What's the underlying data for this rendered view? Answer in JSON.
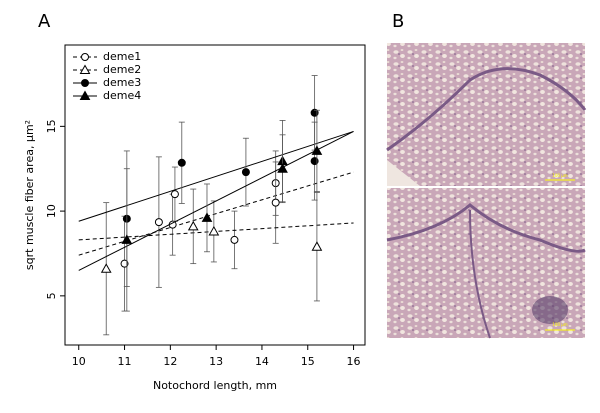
{
  "panel_labels": [
    "A",
    "B"
  ],
  "chart_data": {
    "type": "scatter",
    "xlabel": "Notochord length, mm",
    "ylabel": "sqrt muscle fiber area, µm²",
    "xlim": [
      9.7,
      16.25
    ],
    "ylim": [
      2.1,
      19.8
    ],
    "xticks": [
      10,
      11,
      12,
      13,
      14,
      15,
      16
    ],
    "yticks": [
      5,
      10,
      15
    ],
    "legend": "top-left",
    "fit_x": [
      10,
      16
    ],
    "series": [
      {
        "name": "deme1",
        "color": "#000000",
        "marker": "circle",
        "filled": false,
        "dashed": true,
        "x": [
          11.0,
          11.75,
          12.05,
          12.1,
          13.4,
          14.3,
          14.3
        ],
        "values": [
          6.9,
          9.35,
          9.2,
          11.0,
          8.3,
          11.65,
          10.5
        ],
        "err": [
          2.8,
          3.85,
          1.8,
          1.6,
          1.7,
          1.9,
          2.4
        ],
        "fit": [
          7.4,
          12.3
        ]
      },
      {
        "name": "deme2",
        "color": "#000000",
        "marker": "triangle",
        "filled": false,
        "dashed": true,
        "x": [
          10.6,
          12.5,
          12.95,
          15.2
        ],
        "values": [
          6.6,
          9.1,
          8.8,
          7.9
        ],
        "err": [
          3.9,
          2.2,
          1.8,
          3.2
        ],
        "fit": [
          8.3,
          9.3
        ]
      },
      {
        "name": "deme3",
        "color": "#000000",
        "marker": "circle",
        "filled": true,
        "dashed": false,
        "x": [
          11.05,
          12.25,
          13.65,
          15.15,
          15.15
        ],
        "values": [
          9.55,
          12.85,
          12.3,
          15.8,
          12.95
        ],
        "err": [
          4.0,
          2.4,
          2.0,
          2.2,
          2.3
        ],
        "fit": [
          9.4,
          14.7
        ]
      },
      {
        "name": "deme4",
        "color": "#000000",
        "marker": "triangle",
        "filled": true,
        "dashed": false,
        "x": [
          11.05,
          12.8,
          14.45,
          14.45,
          15.2
        ],
        "values": [
          8.3,
          9.6,
          12.95,
          12.5,
          13.55
        ],
        "err": [
          4.2,
          2.0,
          2.4,
          2.0,
          2.4
        ],
        "fit": [
          6.5,
          14.7
        ]
      }
    ]
  },
  "panel_b": {
    "scale_labels": [
      "100 µm",
      "100 µm"
    ]
  }
}
